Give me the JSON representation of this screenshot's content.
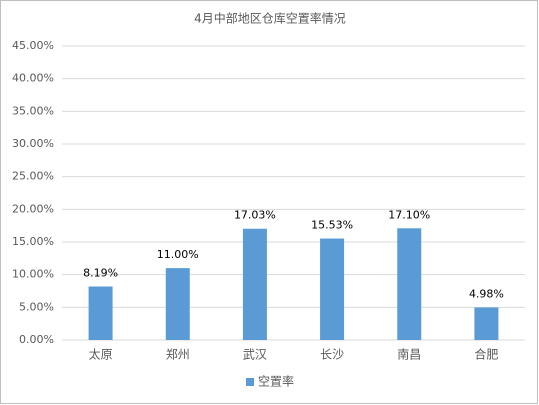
{
  "chart_data": {
    "type": "bar",
    "title": "4月中部地区仓库空置率情况",
    "categories": [
      "太原",
      "郑州",
      "武汉",
      "长沙",
      "南昌",
      "合肥"
    ],
    "series": [
      {
        "name": "空置率",
        "color": "#5b9bd5",
        "values": [
          8.19,
          11.0,
          17.03,
          15.53,
          17.1,
          4.98
        ],
        "value_labels": [
          "8.19%",
          "11.00%",
          "17.03%",
          "15.53%",
          "17.10%",
          "4.98%"
        ]
      }
    ],
    "ylim": [
      0,
      45
    ],
    "yticks": [
      {
        "value": 0,
        "label": "0.00%"
      },
      {
        "value": 5,
        "label": "5.00%"
      },
      {
        "value": 10,
        "label": "10.00%"
      },
      {
        "value": 15,
        "label": "15.00%"
      },
      {
        "value": 20,
        "label": "20.00%"
      },
      {
        "value": 25,
        "label": "25.00%"
      },
      {
        "value": 30,
        "label": "30.00%"
      },
      {
        "value": 35,
        "label": "35.00%"
      },
      {
        "value": 40,
        "label": "40.00%"
      },
      {
        "value": 45,
        "label": "45.00%"
      }
    ],
    "grid": true,
    "legend": "bottom"
  }
}
